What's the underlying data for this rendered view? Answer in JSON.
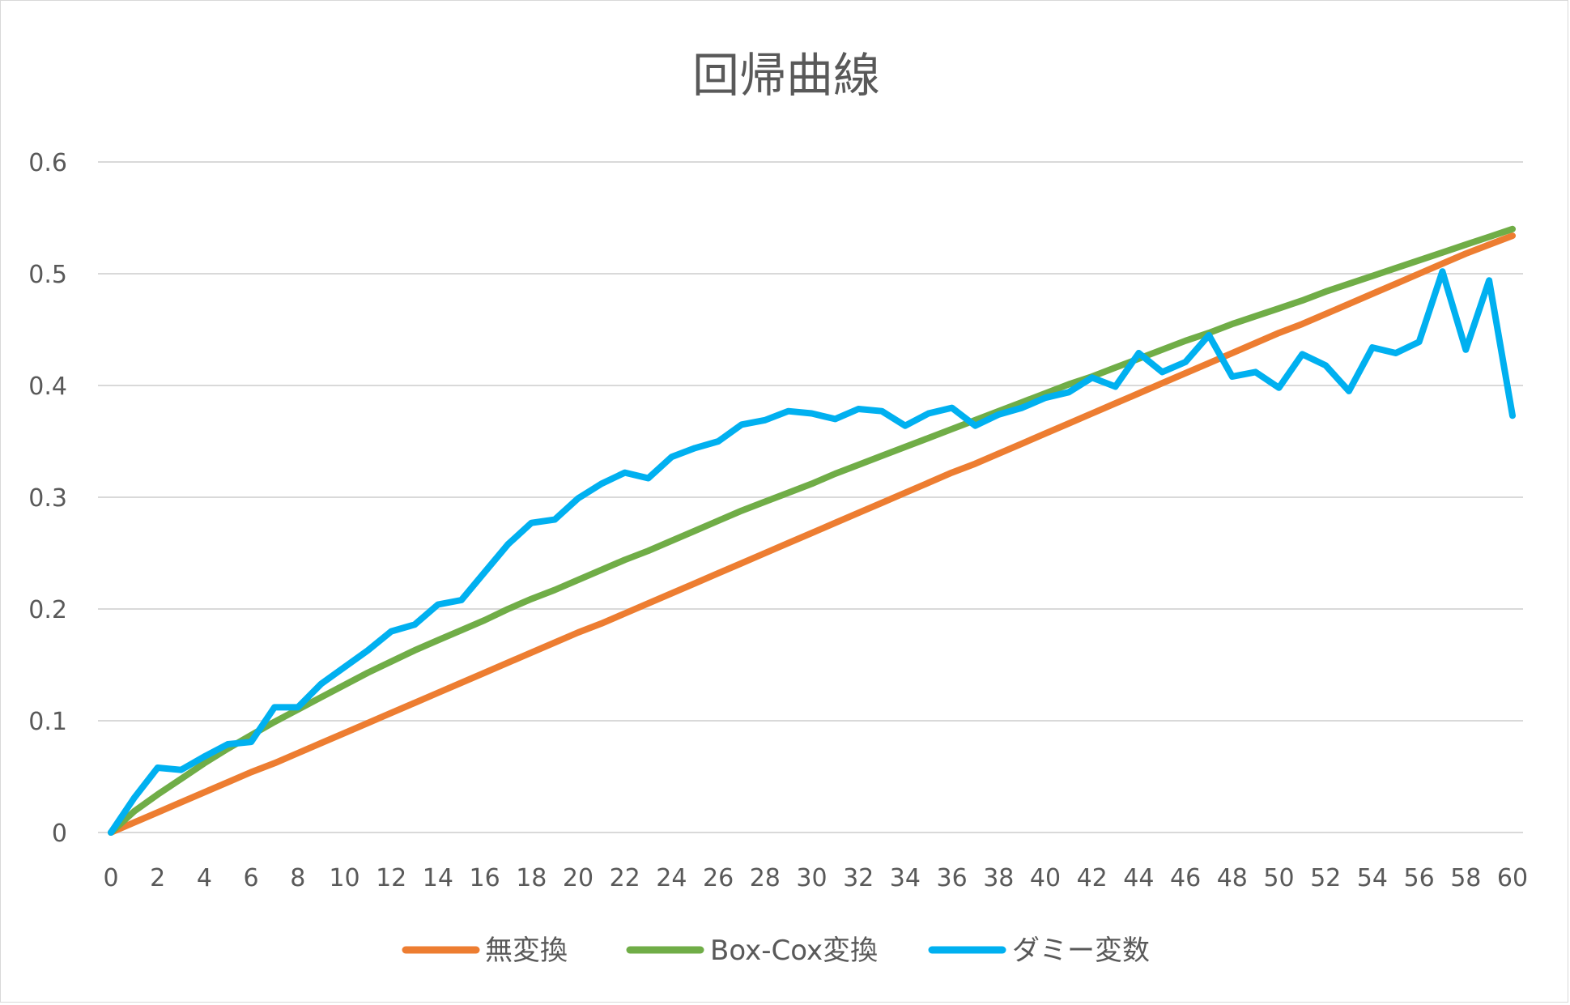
{
  "chart_data": {
    "type": "line",
    "title": "回帰曲線",
    "xlabel": "",
    "ylabel": "",
    "xlim": [
      0,
      60
    ],
    "ylim": [
      0,
      0.6
    ],
    "x_ticks": [
      0,
      2,
      4,
      6,
      8,
      10,
      12,
      14,
      16,
      18,
      20,
      22,
      24,
      26,
      28,
      30,
      32,
      34,
      36,
      38,
      40,
      42,
      44,
      46,
      48,
      50,
      52,
      54,
      56,
      58,
      60
    ],
    "y_ticks": [
      0,
      0.1,
      0.2,
      0.3,
      0.4,
      0.5,
      0.6
    ],
    "y_tick_labels": [
      "0",
      "0.1",
      "0.2",
      "0.3",
      "0.4",
      "0.5",
      "0.6"
    ],
    "grid": true,
    "legend_position": "bottom",
    "series": [
      {
        "name": "無変換",
        "color": "#ED7D31",
        "x": [
          0,
          1,
          2,
          3,
          4,
          5,
          6,
          7,
          8,
          9,
          10,
          11,
          12,
          13,
          14,
          15,
          16,
          17,
          18,
          19,
          20,
          21,
          22,
          23,
          24,
          25,
          26,
          27,
          28,
          29,
          30,
          31,
          32,
          33,
          34,
          35,
          36,
          37,
          38,
          39,
          40,
          41,
          42,
          43,
          44,
          45,
          46,
          47,
          48,
          49,
          50,
          51,
          52,
          53,
          54,
          55,
          56,
          57,
          58,
          59,
          60
        ],
        "y": [
          0,
          0.009,
          0.018,
          0.027,
          0.036,
          0.045,
          0.054,
          0.062,
          0.071,
          0.08,
          0.089,
          0.098,
          0.107,
          0.116,
          0.125,
          0.134,
          0.143,
          0.152,
          0.161,
          0.17,
          0.179,
          0.187,
          0.196,
          0.205,
          0.214,
          0.223,
          0.232,
          0.241,
          0.25,
          0.259,
          0.268,
          0.277,
          0.286,
          0.295,
          0.304,
          0.313,
          0.322,
          0.33,
          0.339,
          0.348,
          0.357,
          0.366,
          0.375,
          0.384,
          0.393,
          0.402,
          0.411,
          0.42,
          0.429,
          0.438,
          0.447,
          0.455,
          0.464,
          0.473,
          0.482,
          0.491,
          0.5,
          0.509,
          0.518,
          0.526,
          0.534
        ]
      },
      {
        "name": "Box-Cox変換",
        "color": "#70AD47",
        "x": [
          0,
          1,
          2,
          3,
          4,
          5,
          6,
          7,
          8,
          9,
          10,
          11,
          12,
          13,
          14,
          15,
          16,
          17,
          18,
          19,
          20,
          21,
          22,
          23,
          24,
          25,
          26,
          27,
          28,
          29,
          30,
          31,
          32,
          33,
          34,
          35,
          36,
          37,
          38,
          39,
          40,
          41,
          42,
          43,
          44,
          45,
          46,
          47,
          48,
          49,
          50,
          51,
          52,
          53,
          54,
          55,
          56,
          57,
          58,
          59,
          60
        ],
        "y": [
          0,
          0.019,
          0.034,
          0.048,
          0.062,
          0.075,
          0.087,
          0.099,
          0.11,
          0.121,
          0.132,
          0.143,
          0.153,
          0.163,
          0.172,
          0.181,
          0.19,
          0.2,
          0.209,
          0.217,
          0.226,
          0.235,
          0.244,
          0.252,
          0.261,
          0.27,
          0.279,
          0.288,
          0.296,
          0.304,
          0.312,
          0.321,
          0.329,
          0.337,
          0.345,
          0.353,
          0.361,
          0.369,
          0.377,
          0.385,
          0.393,
          0.401,
          0.408,
          0.416,
          0.424,
          0.432,
          0.44,
          0.447,
          0.455,
          0.462,
          0.469,
          0.476,
          0.484,
          0.491,
          0.498,
          0.505,
          0.512,
          0.519,
          0.526,
          0.533,
          0.54
        ]
      },
      {
        "name": "ダミー変数",
        "color": "#00B0F0",
        "x": [
          0,
          1,
          2,
          3,
          4,
          5,
          6,
          7,
          8,
          9,
          10,
          11,
          12,
          13,
          14,
          15,
          16,
          17,
          18,
          19,
          20,
          21,
          22,
          23,
          24,
          25,
          26,
          27,
          28,
          29,
          30,
          31,
          32,
          33,
          34,
          35,
          36,
          37,
          38,
          39,
          40,
          41,
          42,
          43,
          44,
          45,
          46,
          47,
          48,
          49,
          50,
          51,
          52,
          53,
          54,
          55,
          56,
          57,
          58,
          59,
          60
        ],
        "y": [
          0,
          0.031,
          0.058,
          0.056,
          0.068,
          0.079,
          0.081,
          0.112,
          0.112,
          0.133,
          0.148,
          0.163,
          0.18,
          0.186,
          0.204,
          0.208,
          0.233,
          0.258,
          0.277,
          0.28,
          0.299,
          0.312,
          0.322,
          0.317,
          0.336,
          0.344,
          0.35,
          0.365,
          0.369,
          0.377,
          0.375,
          0.37,
          0.379,
          0.377,
          0.364,
          0.375,
          0.38,
          0.364,
          0.374,
          0.38,
          0.389,
          0.394,
          0.407,
          0.399,
          0.429,
          0.412,
          0.421,
          0.445,
          0.408,
          0.412,
          0.398,
          0.428,
          0.418,
          0.395,
          0.434,
          0.429,
          0.439,
          0.502,
          0.432,
          0.494,
          0.373
        ]
      }
    ]
  }
}
